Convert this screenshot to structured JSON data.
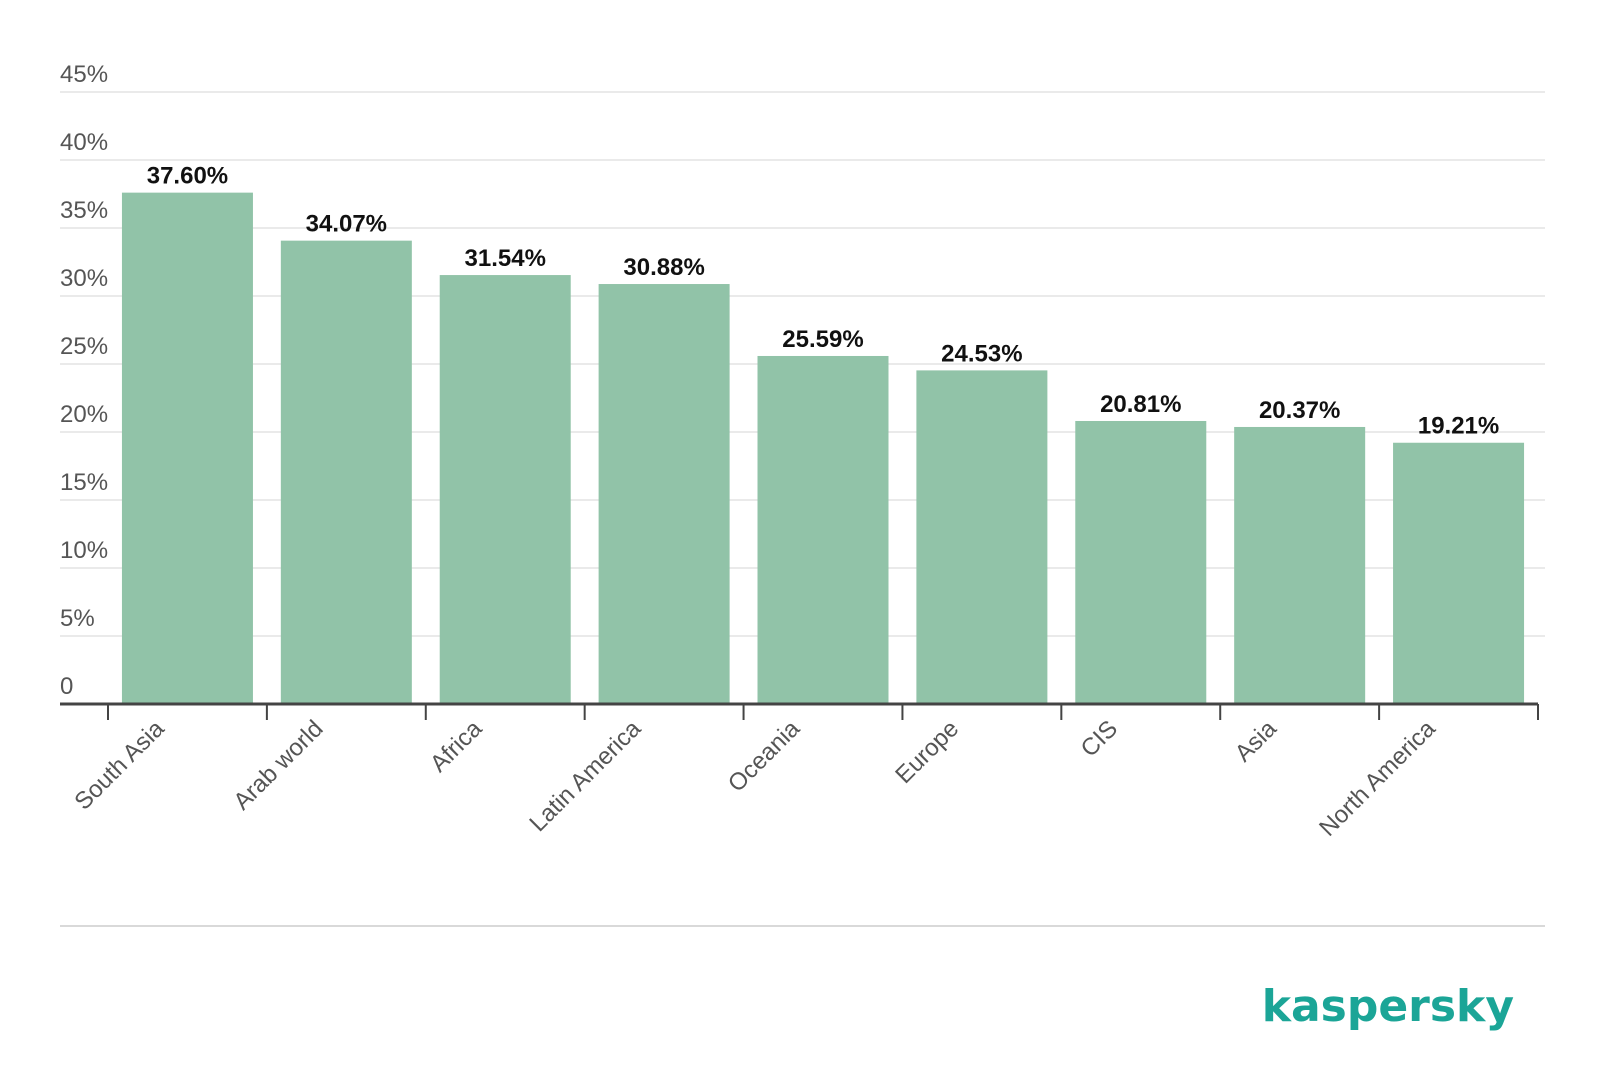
{
  "chart_data": {
    "type": "bar",
    "categories": [
      "South Asia",
      "Arab world",
      "Africa",
      "Latin America",
      "Oceania",
      "Europe",
      "CIS",
      "Asia",
      "North America"
    ],
    "values": [
      37.6,
      34.07,
      31.54,
      30.88,
      25.59,
      24.53,
      20.81,
      20.37,
      19.21
    ],
    "value_labels": [
      "37.60%",
      "34.07%",
      "31.54%",
      "30.88%",
      "25.59%",
      "24.53%",
      "20.81%",
      "20.37%",
      "19.21%"
    ],
    "y_ticks": [
      0,
      5,
      10,
      15,
      20,
      25,
      30,
      35,
      40,
      45
    ],
    "y_tick_labels": [
      "0",
      "5%",
      "10%",
      "15%",
      "20%",
      "25%",
      "30%",
      "35%",
      "40%",
      "45%"
    ],
    "ylim": [
      0,
      45
    ],
    "grid": true,
    "legend": "none",
    "colors": {
      "bar": "#91c3a8",
      "grid": "#e3e3e3",
      "axis": "#444444",
      "logo": "#1ba597"
    }
  },
  "brand": {
    "logo_text": "kaspersky"
  }
}
